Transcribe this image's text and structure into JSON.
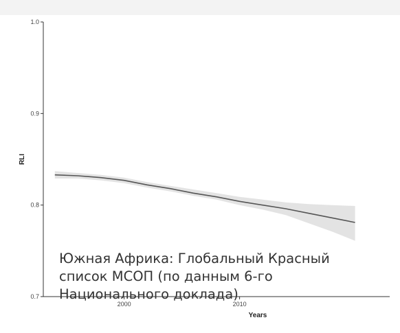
{
  "colors": {
    "line": "#555555",
    "ribbon": "#e3e3e3",
    "axis": "#333333",
    "caption_text": "#333333",
    "background": "#ffffff",
    "top_band": "#f3f3f3"
  },
  "caption": {
    "lines": [
      "Южная Африка: Глобальный Красный",
      "список МСОП (по данным 6-го",
      "Национального доклада)"
    ]
  },
  "chart_data": {
    "type": "line",
    "xlabel": "Years",
    "ylabel": "RLI",
    "xlim": [
      1993,
      2023
    ],
    "ylim": [
      0.7,
      1.0
    ],
    "x_ticks": [
      2000,
      2010
    ],
    "y_ticks": [
      0.7,
      0.8,
      0.9,
      1.0
    ],
    "y_tick_labels": [
      "0.7",
      "0.8",
      "0.9",
      "1.0"
    ],
    "x_tick_labels": [
      "2000",
      "2010"
    ],
    "grid": false,
    "series": [
      {
        "x": [
          1994,
          1996,
          1998,
          2000,
          2002,
          2004,
          2006,
          2008,
          2010,
          2012,
          2014,
          2016,
          2018,
          2020
        ],
        "values": [
          0.833,
          0.832,
          0.83,
          0.827,
          0.822,
          0.818,
          0.813,
          0.809,
          0.804,
          0.8,
          0.796,
          0.791,
          0.786,
          0.781
        ],
        "lower": [
          0.829,
          0.829,
          0.827,
          0.824,
          0.819,
          0.815,
          0.81,
          0.806,
          0.8,
          0.795,
          0.789,
          0.78,
          0.771,
          0.761
        ],
        "upper": [
          0.837,
          0.835,
          0.833,
          0.83,
          0.825,
          0.821,
          0.817,
          0.813,
          0.809,
          0.806,
          0.803,
          0.801,
          0.8,
          0.799
        ]
      }
    ]
  }
}
